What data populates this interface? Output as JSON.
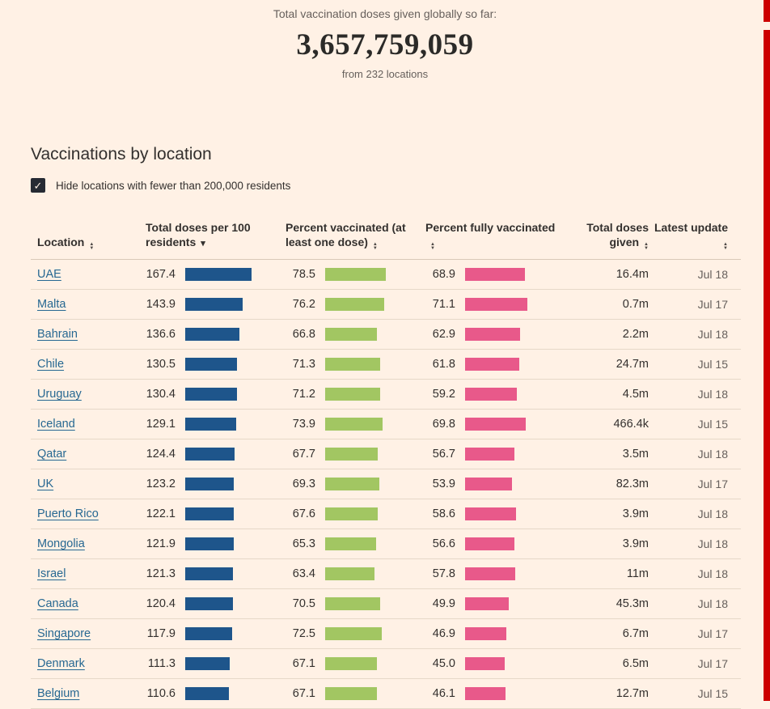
{
  "page": {
    "accent_red": "#cc0000"
  },
  "hero": {
    "intro": "Total vaccination doses given globally so far:",
    "total": "3,657,759,059",
    "subtitle": "from 232 locations"
  },
  "section": {
    "title": "Vaccinations by location",
    "filter_label": "Hide locations with fewer than 200,000 residents",
    "filter_checked": true,
    "checkmark": "✓"
  },
  "table": {
    "columns": [
      {
        "key": "location",
        "label": "Location",
        "sort": "none"
      },
      {
        "key": "doses_per_100",
        "label": "Total doses per 100 residents",
        "sort": "desc"
      },
      {
        "key": "pct_one_dose",
        "label": "Percent vaccinated (at least one dose)",
        "sort": "none"
      },
      {
        "key": "pct_fully",
        "label": "Percent fully vaccinated",
        "sort": "none"
      },
      {
        "key": "total_doses",
        "label": "Total doses given",
        "sort": "none"
      },
      {
        "key": "latest_update",
        "label": "Latest update",
        "sort": "none"
      }
    ],
    "bar_columns": [
      {
        "field": "doses_per_100",
        "color": "#1e558b"
      },
      {
        "field": "pct_one_dose",
        "color": "#a2c662"
      },
      {
        "field": "pct_fully",
        "color": "#e8598a"
      }
    ],
    "rows": [
      {
        "location": "UAE",
        "doses_per_100": "167.4",
        "pct_one_dose": "78.5",
        "pct_fully": "68.9",
        "total_doses": "16.4m",
        "latest_update": "Jul 18"
      },
      {
        "location": "Malta",
        "doses_per_100": "143.9",
        "pct_one_dose": "76.2",
        "pct_fully": "71.1",
        "total_doses": "0.7m",
        "latest_update": "Jul 17"
      },
      {
        "location": "Bahrain",
        "doses_per_100": "136.6",
        "pct_one_dose": "66.8",
        "pct_fully": "62.9",
        "total_doses": "2.2m",
        "latest_update": "Jul 18"
      },
      {
        "location": "Chile",
        "doses_per_100": "130.5",
        "pct_one_dose": "71.3",
        "pct_fully": "61.8",
        "total_doses": "24.7m",
        "latest_update": "Jul 15"
      },
      {
        "location": "Uruguay",
        "doses_per_100": "130.4",
        "pct_one_dose": "71.2",
        "pct_fully": "59.2",
        "total_doses": "4.5m",
        "latest_update": "Jul 18"
      },
      {
        "location": "Iceland",
        "doses_per_100": "129.1",
        "pct_one_dose": "73.9",
        "pct_fully": "69.8",
        "total_doses": "466.4k",
        "latest_update": "Jul 15"
      },
      {
        "location": "Qatar",
        "doses_per_100": "124.4",
        "pct_one_dose": "67.7",
        "pct_fully": "56.7",
        "total_doses": "3.5m",
        "latest_update": "Jul 18"
      },
      {
        "location": "UK",
        "doses_per_100": "123.2",
        "pct_one_dose": "69.3",
        "pct_fully": "53.9",
        "total_doses": "82.3m",
        "latest_update": "Jul 17"
      },
      {
        "location": "Puerto Rico",
        "doses_per_100": "122.1",
        "pct_one_dose": "67.6",
        "pct_fully": "58.6",
        "total_doses": "3.9m",
        "latest_update": "Jul 18"
      },
      {
        "location": "Mongolia",
        "doses_per_100": "121.9",
        "pct_one_dose": "65.3",
        "pct_fully": "56.6",
        "total_doses": "3.9m",
        "latest_update": "Jul 18"
      },
      {
        "location": "Israel",
        "doses_per_100": "121.3",
        "pct_one_dose": "63.4",
        "pct_fully": "57.8",
        "total_doses": "11m",
        "latest_update": "Jul 18"
      },
      {
        "location": "Canada",
        "doses_per_100": "120.4",
        "pct_one_dose": "70.5",
        "pct_fully": "49.9",
        "total_doses": "45.3m",
        "latest_update": "Jul 18"
      },
      {
        "location": "Singapore",
        "doses_per_100": "117.9",
        "pct_one_dose": "72.5",
        "pct_fully": "46.9",
        "total_doses": "6.7m",
        "latest_update": "Jul 17"
      },
      {
        "location": "Denmark",
        "doses_per_100": "111.3",
        "pct_one_dose": "67.1",
        "pct_fully": "45.0",
        "total_doses": "6.5m",
        "latest_update": "Jul 17"
      },
      {
        "location": "Belgium",
        "doses_per_100": "110.6",
        "pct_one_dose": "67.1",
        "pct_fully": "46.1",
        "total_doses": "12.7m",
        "latest_update": "Jul 15"
      }
    ]
  }
}
